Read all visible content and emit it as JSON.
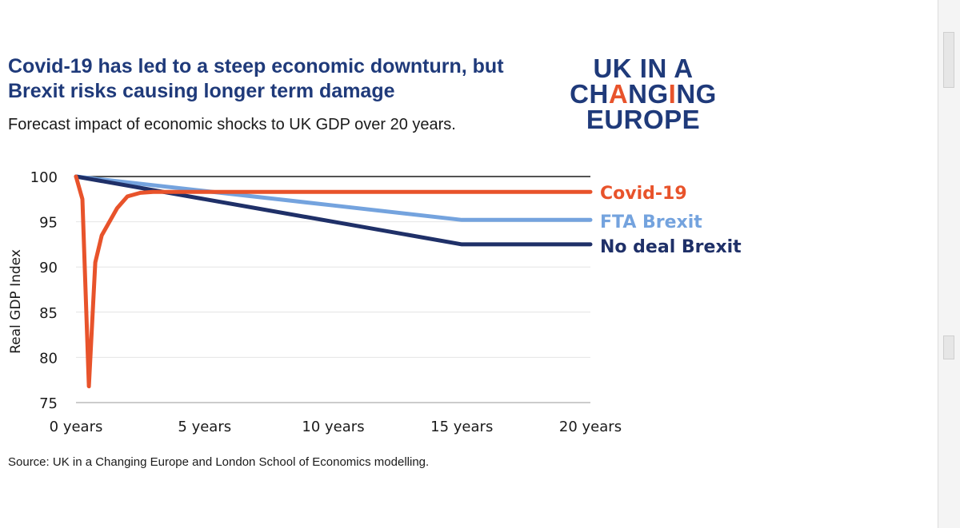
{
  "title_line1": "Covid-19 has led to a steep economic downturn, but",
  "title_line2": "Brexit risks causing longer term damage",
  "subtitle": "Forecast impact of economic shocks to UK GDP over 20 years.",
  "source": "Source: UK in a Changing Europe and London School of Economics modelling.",
  "logo": {
    "line1": "UK IN A",
    "line2_pre": "CH",
    "line2_accent1": "A",
    "line2_mid": "NG",
    "line2_accent2": "I",
    "line2_post": "NG",
    "line3": "EUROPE",
    "color": "#1f3a7a",
    "accent_color": "#e8532b"
  },
  "chart_data": {
    "type": "line",
    "title": "Covid-19 has led to a steep economic downturn, but Brexit risks causing longer term damage",
    "subtitle": "Forecast impact of economic shocks to UK GDP over 20 years.",
    "xlabel": "",
    "ylabel": "Real GDP Index",
    "xlim": [
      0,
      20
    ],
    "ylim": [
      75,
      100
    ],
    "xticks": [
      0,
      5,
      10,
      15,
      20
    ],
    "xtick_labels": [
      "0 years",
      "5 years",
      "10 years",
      "15 years",
      "20 years"
    ],
    "yticks": [
      75,
      80,
      85,
      90,
      95,
      100
    ],
    "ytick_labels": [
      "75",
      "80",
      "85",
      "90",
      "95",
      "100"
    ],
    "grid": true,
    "baseline": 100,
    "legend_position": "right (direct labels at line ends)",
    "series": [
      {
        "name": "Covid-19",
        "color": "#e8532b",
        "x": [
          0,
          0.25,
          0.5,
          0.75,
          1.0,
          1.3,
          1.6,
          2.0,
          2.5,
          3.0,
          4.0,
          5.0,
          20.0
        ],
        "y": [
          100,
          97.5,
          76.8,
          90.5,
          93.5,
          95.0,
          96.5,
          97.8,
          98.2,
          98.3,
          98.3,
          98.3,
          98.3
        ]
      },
      {
        "name": "FTA Brexit",
        "color": "#74a3de",
        "x": [
          0,
          5,
          10,
          15,
          20
        ],
        "y": [
          100,
          98.4,
          96.8,
          95.2,
          95.2
        ]
      },
      {
        "name": "No deal Brexit",
        "color": "#1f3068",
        "x": [
          0,
          5,
          10,
          15,
          20
        ],
        "y": [
          100,
          97.5,
          95.0,
          92.5,
          92.5
        ]
      }
    ]
  }
}
